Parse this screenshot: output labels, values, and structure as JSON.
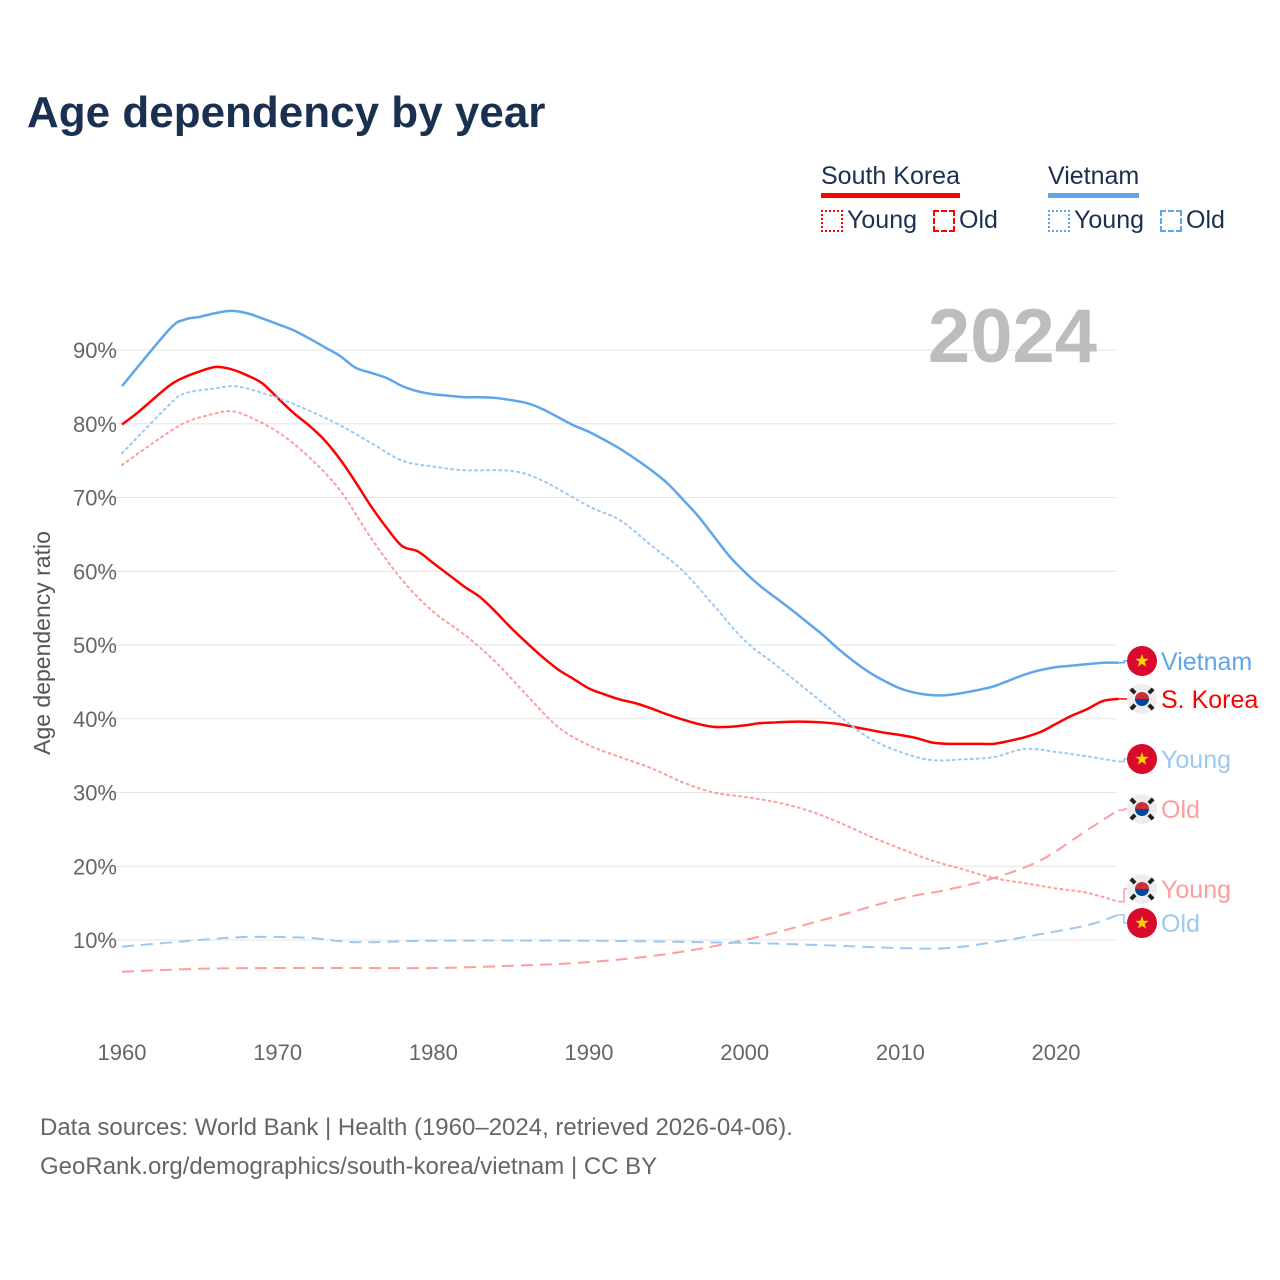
{
  "title": "Age dependency by year",
  "year_label": "2024",
  "legend": {
    "groups": [
      {
        "name": "South Korea",
        "color": "#ff0000",
        "young": "Young",
        "old": "Old"
      },
      {
        "name": "Vietnam",
        "color": "#5ea6ec",
        "young": "Young",
        "old": "Old"
      }
    ]
  },
  "footer": {
    "line1": "Data sources: World Bank | Health (1960–2024, retrieved 2026-04-06).",
    "line2": "GeoRank.org/demographics/south-korea/vietnam | CC BY"
  },
  "chart_data": {
    "type": "line",
    "title": "Age dependency by year",
    "xlabel": "",
    "ylabel": "Age dependency ratio",
    "xlim": [
      1960,
      2024
    ],
    "ylim": [
      0,
      97
    ],
    "x_ticks": [
      "1960",
      "1970",
      "1980",
      "1990",
      "2000",
      "2010",
      "2020"
    ],
    "y_ticks": [
      "10%",
      "20%",
      "30%",
      "40%",
      "50%",
      "60%",
      "70%",
      "80%",
      "90%"
    ],
    "grid": true,
    "series": [
      {
        "name": "Vietnam",
        "end_label": "Vietnam",
        "flag": "vietnam",
        "color": "#5ea6ec",
        "style": "solid",
        "x": [
          1960,
          1963,
          1964,
          1965,
          1966,
          1967,
          1968,
          1969,
          1970,
          1971,
          1972,
          1973,
          1974,
          1975,
          1976,
          1977,
          1978,
          1979,
          1980,
          1981,
          1982,
          1983,
          1984,
          1985,
          1986,
          1987,
          1988,
          1989,
          1990,
          1991,
          1992,
          1993,
          1994,
          1995,
          1996,
          1997,
          1998,
          1999,
          2000,
          2001,
          2002,
          2003,
          2004,
          2005,
          2006,
          2007,
          2008,
          2009,
          2010,
          2011,
          2012,
          2013,
          2014,
          2015,
          2016,
          2017,
          2018,
          2019,
          2020,
          2021,
          2022,
          2023,
          2024
        ],
        "y": [
          85.1,
          92.7,
          94.1,
          94.5,
          95.0,
          95.3,
          95.0,
          94.3,
          93.5,
          92.7,
          91.6,
          90.4,
          89.2,
          87.6,
          86.9,
          86.2,
          85.1,
          84.4,
          84.0,
          83.8,
          83.6,
          83.6,
          83.5,
          83.2,
          82.8,
          82.0,
          80.9,
          79.8,
          78.9,
          77.8,
          76.6,
          75.2,
          73.7,
          72.0,
          69.8,
          67.5,
          64.8,
          62.1,
          59.9,
          58.0,
          56.4,
          54.8,
          53.1,
          51.4,
          49.5,
          47.8,
          46.3,
          45.1,
          44.1,
          43.5,
          43.2,
          43.2,
          43.5,
          43.9,
          44.4,
          45.2,
          46.0,
          46.6,
          47.0,
          47.2,
          47.4,
          47.6,
          47.6
        ]
      },
      {
        "name": "S. Korea",
        "end_label": "S. Korea",
        "flag": "south-korea",
        "color": "#ff0000",
        "style": "solid",
        "x": [
          1960,
          1961,
          1963,
          1964,
          1965,
          1966,
          1967,
          1968,
          1969,
          1970,
          1971,
          1972,
          1973,
          1974,
          1975,
          1976,
          1977,
          1978,
          1979,
          1980,
          1981,
          1982,
          1983,
          1984,
          1985,
          1986,
          1987,
          1988,
          1989,
          1990,
          1991,
          1992,
          1993,
          1994,
          1995,
          1996,
          1997,
          1998,
          1999,
          2000,
          2001,
          2002,
          2003,
          2004,
          2005,
          2006,
          2007,
          2008,
          2009,
          2010,
          2011,
          2012,
          2013,
          2014,
          2015,
          2016,
          2017,
          2018,
          2019,
          2020,
          2021,
          2022,
          2023,
          2024
        ],
        "y": [
          79.9,
          81.5,
          85.1,
          86.3,
          87.1,
          87.7,
          87.4,
          86.6,
          85.5,
          83.5,
          81.5,
          79.8,
          77.8,
          75.2,
          72.1,
          68.8,
          65.9,
          63.4,
          62.7,
          61.1,
          59.5,
          57.9,
          56.5,
          54.5,
          52.3,
          50.3,
          48.4,
          46.7,
          45.4,
          44.1,
          43.3,
          42.6,
          42.1,
          41.4,
          40.6,
          39.9,
          39.3,
          38.9,
          38.9,
          39.1,
          39.4,
          39.5,
          39.6,
          39.6,
          39.5,
          39.3,
          38.9,
          38.5,
          38.1,
          37.8,
          37.4,
          36.8,
          36.6,
          36.6,
          36.6,
          36.6,
          37.0,
          37.5,
          38.2,
          39.3,
          40.4,
          41.3,
          42.4,
          42.7
        ]
      },
      {
        "name": "Vietnam Young",
        "end_label": "Young",
        "flag": "vietnam",
        "color": "#9cc8f2",
        "style": "dotted",
        "x": [
          1960,
          1963,
          1964,
          1966,
          1967,
          1968,
          1970,
          1972,
          1974,
          1976,
          1978,
          1980,
          1982,
          1985,
          1987,
          1990,
          1992,
          1994,
          1996,
          1998,
          2000,
          2002,
          2004,
          2006,
          2008,
          2010,
          2012,
          2014,
          2016,
          2018,
          2020,
          2022,
          2024
        ],
        "y": [
          76.0,
          82.5,
          84.1,
          84.8,
          85.1,
          84.8,
          83.5,
          81.8,
          79.8,
          77.4,
          75.0,
          74.2,
          73.7,
          73.6,
          72.3,
          68.8,
          66.9,
          63.5,
          60.1,
          55.4,
          50.6,
          47.3,
          43.9,
          40.5,
          37.4,
          35.5,
          34.4,
          34.5,
          34.8,
          35.9,
          35.5,
          34.9,
          34.2
        ]
      },
      {
        "name": "S. Korea Old",
        "end_label": "Old",
        "flag": "south-korea",
        "color": "#ff9c9c",
        "style": "dashed",
        "x": [
          1960,
          1965,
          1970,
          1975,
          1980,
          1985,
          1990,
          1995,
          2000,
          2005,
          2010,
          2013,
          2016,
          2019,
          2022,
          2024
        ],
        "y": [
          5.7,
          6.1,
          6.2,
          6.2,
          6.2,
          6.5,
          7.0,
          8.1,
          10.0,
          12.7,
          15.6,
          16.8,
          18.4,
          20.8,
          24.9,
          27.6
        ]
      },
      {
        "name": "S. Korea Young",
        "end_label": "Young",
        "flag": "south-korea",
        "color": "#ff9c9c",
        "style": "dotted",
        "x": [
          1960,
          1962,
          1964,
          1966,
          1967,
          1968,
          1970,
          1972,
          1974,
          1976,
          1978,
          1980,
          1982,
          1984,
          1986,
          1988,
          1990,
          1992,
          1994,
          1996,
          1998,
          2000,
          2002,
          2004,
          2006,
          2008,
          2010,
          2012,
          2014,
          2016,
          2018,
          2020,
          2022,
          2024
        ],
        "y": [
          74.4,
          77.4,
          80.1,
          81.4,
          81.7,
          81.1,
          78.9,
          75.5,
          71.0,
          64.5,
          58.8,
          54.5,
          51.4,
          47.7,
          43.2,
          38.9,
          36.4,
          34.8,
          33.3,
          31.4,
          30.0,
          29.4,
          28.7,
          27.6,
          26.0,
          24.1,
          22.4,
          20.8,
          19.6,
          18.4,
          17.7,
          17.0,
          16.4,
          15.2
        ]
      },
      {
        "name": "Vietnam Old",
        "end_label": "Old",
        "flag": "vietnam",
        "color": "#9cc8f2",
        "style": "dashed",
        "x": [
          1960,
          1965,
          1968,
          1972,
          1975,
          1980,
          1990,
          2000,
          2005,
          2010,
          2013,
          2016,
          2019,
          2022,
          2024
        ],
        "y": [
          9.1,
          10.0,
          10.4,
          10.3,
          9.7,
          9.9,
          9.9,
          9.6,
          9.3,
          8.9,
          8.9,
          9.7,
          10.8,
          12.0,
          13.4
        ]
      }
    ]
  }
}
